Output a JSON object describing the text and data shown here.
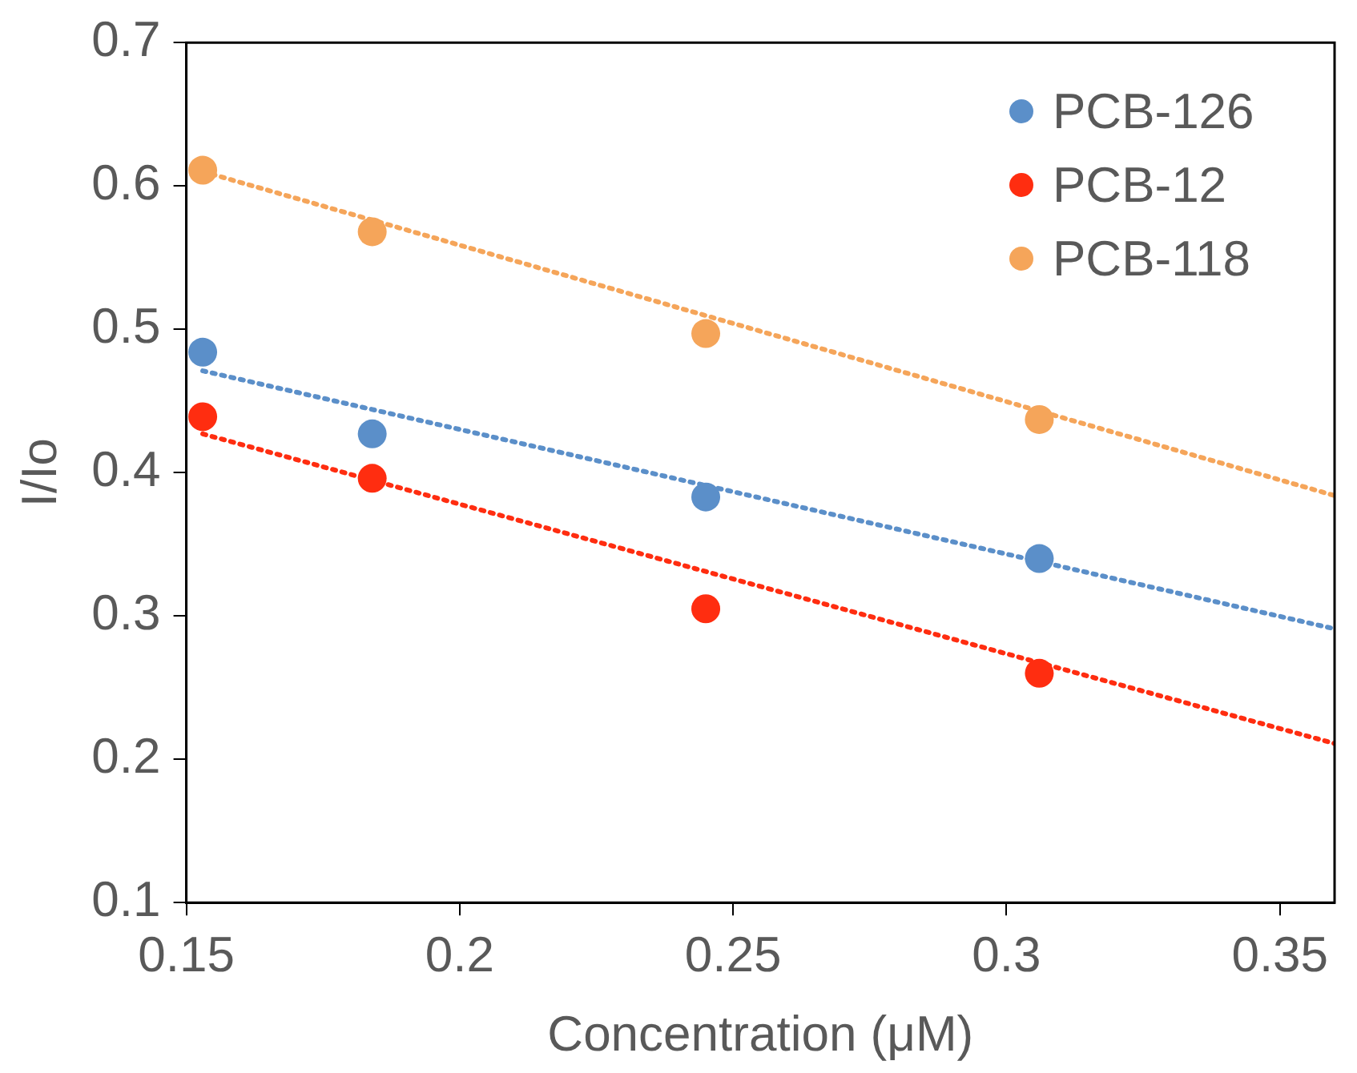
{
  "chart_data": {
    "type": "scatter",
    "xlabel": "Concentration (μM)",
    "ylabel": "I/Io",
    "xlim": [
      0.15,
      0.36
    ],
    "xticks": [
      0.15,
      0.2,
      0.25,
      0.3,
      0.35
    ],
    "ylim": [
      0.1,
      0.7
    ],
    "yticks": [
      0.1,
      0.2,
      0.3,
      0.4,
      0.5,
      0.6,
      0.7
    ],
    "grid": false,
    "legend": "top right",
    "marker": "circle",
    "series": [
      {
        "name": "PCB-126",
        "color": "#5b8fc9",
        "x": [
          0.153,
          0.184,
          0.245,
          0.306
        ],
        "values": [
          0.484,
          0.427,
          0.383,
          0.34
        ]
      },
      {
        "name": "PCB-12",
        "color": "#ff2d10",
        "x": [
          0.153,
          0.184,
          0.245,
          0.306
        ],
        "values": [
          0.439,
          0.396,
          0.305,
          0.26
        ]
      },
      {
        "name": "PCB-118",
        "color": "#f5a55a",
        "x": [
          0.153,
          0.184,
          0.245,
          0.306
        ],
        "values": [
          0.611,
          0.568,
          0.497,
          0.437
        ]
      },
      {
        "type": "line",
        "line_style": "dotted",
        "marker": "none",
        "color": "#5b8fc9",
        "x": [
          0.153,
          0.36
        ],
        "values": [
          0.471,
          0.291
        ]
      },
      {
        "type": "line",
        "line_style": "dotted",
        "marker": "none",
        "color": "#ff2d10",
        "x": [
          0.153,
          0.36
        ],
        "values": [
          0.427,
          0.211
        ]
      },
      {
        "type": "line",
        "line_style": "dotted",
        "marker": "none",
        "color": "#f5a55a",
        "x": [
          0.153,
          0.36
        ],
        "values": [
          0.61,
          0.384
        ]
      }
    ]
  }
}
